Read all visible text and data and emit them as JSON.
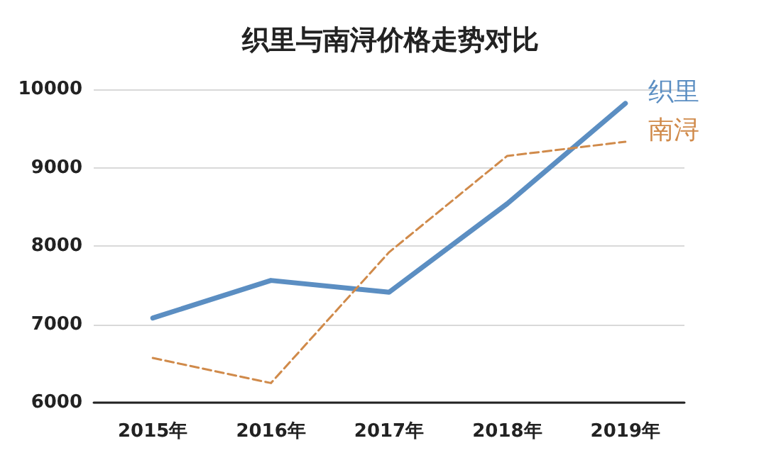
{
  "chart_data": {
    "type": "line",
    "title": "织里与南浔价格走势对比",
    "categories": [
      "2015年",
      "2016年",
      "2017年",
      "2018年",
      "2019年"
    ],
    "series": [
      {
        "name": "织里",
        "color": "#5b8ec2",
        "line_style": "solid",
        "values": [
          7080,
          7560,
          7410,
          8540,
          9820
        ]
      },
      {
        "name": "南浔",
        "color": "#d08a4a",
        "line_style": "dashed",
        "values": [
          6570,
          6250,
          7920,
          9150,
          9330
        ]
      }
    ],
    "ylim": [
      6000,
      10000
    ],
    "yticks": [
      6000,
      7000,
      8000,
      9000,
      10000
    ],
    "grid": "y",
    "legend": false,
    "marker": "none"
  }
}
